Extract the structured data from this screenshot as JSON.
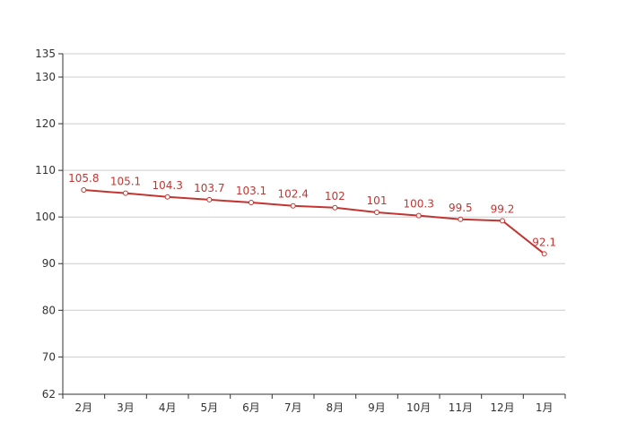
{
  "chart_data": {
    "type": "line",
    "categories": [
      "2月",
      "3月",
      "4月",
      "5月",
      "6月",
      "7月",
      "8月",
      "9月",
      "10月",
      "11月",
      "12月",
      "1月"
    ],
    "series": [
      {
        "values": [
          105.8,
          105.1,
          104.3,
          103.7,
          103.1,
          102.4,
          102,
          101,
          100.3,
          99.5,
          99.2,
          92.1
        ]
      }
    ],
    "data_labels": [
      "105.8",
      "105.1",
      "104.3",
      "103.7",
      "103.1",
      "102.4",
      "102",
      "101",
      "100.3",
      "99.5",
      "99.2",
      "92.1"
    ],
    "ylim": [
      62,
      135
    ],
    "yticks": [
      62,
      70,
      80,
      90,
      100,
      110,
      120,
      130,
      135
    ],
    "ytick_labels": [
      "62",
      "70",
      "80",
      "90",
      "100",
      "110",
      "120",
      "130",
      "135"
    ],
    "grid": true,
    "colors": {
      "series": "#c23531",
      "grid": "#cccccc",
      "axis": "#333333"
    }
  }
}
